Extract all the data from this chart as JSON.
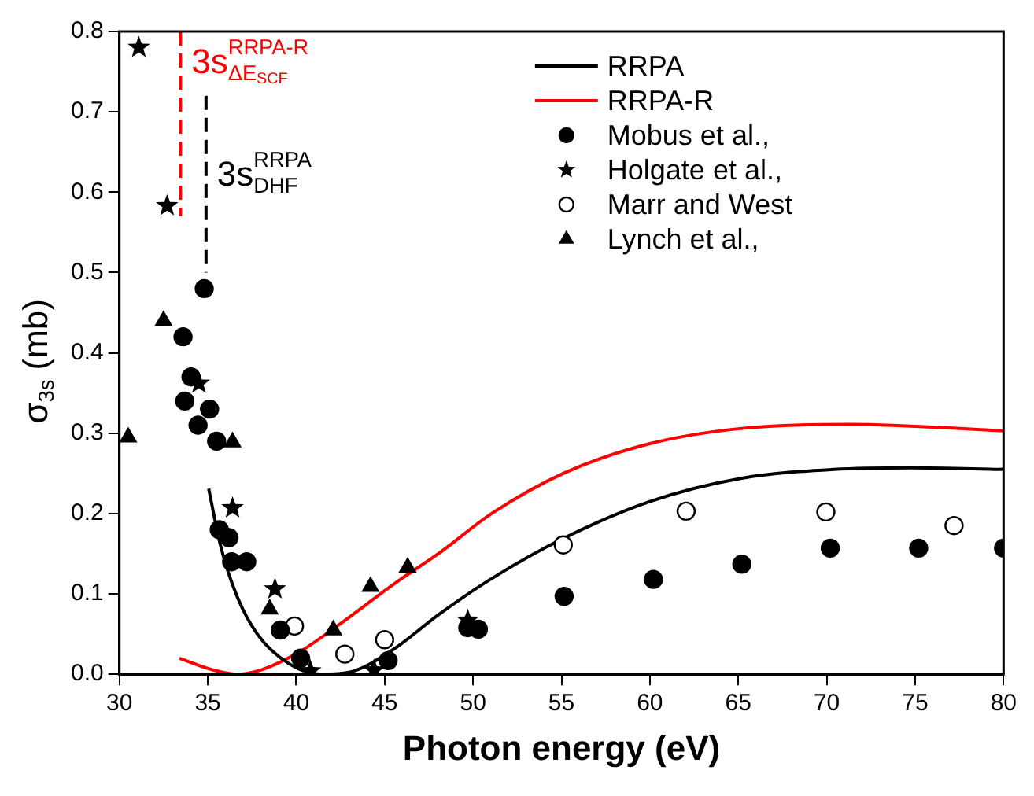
{
  "chart_data": {
    "type": "scatter",
    "xlabel": "Photon energy (eV)",
    "ylabel": "σ$_{3s}$ (mb)",
    "xlim": [
      30,
      80
    ],
    "xticks": [
      30,
      35,
      40,
      45,
      50,
      55,
      60,
      65,
      70,
      75,
      80
    ],
    "ylim": [
      0,
      0.8
    ],
    "yticks": [
      {
        "value": 0,
        "label": "0.0"
      },
      0.1,
      0.2,
      0.3,
      0.4,
      0.5,
      0.6,
      0.7,
      0.8
    ],
    "grid": false,
    "legend": "top right",
    "series": [
      {
        "name": "RRPA",
        "type": "line",
        "color": "#000000",
        "marker": "none",
        "x": [
          35.05,
          35.7,
          36.6,
          37.8,
          39.6,
          41.4,
          43.1,
          45.5,
          48.1,
          51.05,
          55.1,
          60,
          65.2,
          70.4,
          74.8,
          80
        ],
        "values": [
          0.231,
          0.162,
          0.1,
          0.05,
          0.013,
          0.0,
          0.003,
          0.031,
          0.075,
          0.119,
          0.169,
          0.215,
          0.244,
          0.255,
          0.257,
          0.255
        ]
      },
      {
        "name": "RRPA-R",
        "type": "line",
        "color": "#ff0000",
        "marker": "none",
        "x": [
          33.4,
          35.2,
          36.6,
          38.1,
          40.2,
          42.5,
          45.5,
          48.1,
          51.05,
          55.1,
          60,
          65.2,
          71.3,
          80
        ],
        "values": [
          0.02,
          0.006,
          0.0,
          0.006,
          0.028,
          0.063,
          0.112,
          0.151,
          0.2,
          0.25,
          0.287,
          0.306,
          0.311,
          0.303
        ]
      },
      {
        "name": "Mobus et al.,",
        "type": "scatter",
        "color": "#000000",
        "marker": "circle",
        "x": [
          34.8,
          33.6,
          34.05,
          33.7,
          35.1,
          34.45,
          35.5,
          35.65,
          36.2,
          36.35,
          37.2,
          39.1,
          40.25,
          45.2,
          49.7,
          50.3,
          55.15,
          60.2,
          65.2,
          70.2,
          75.2,
          80
        ],
        "values": [
          0.48,
          0.42,
          0.37,
          0.34,
          0.33,
          0.31,
          0.29,
          0.18,
          0.17,
          0.14,
          0.14,
          0.055,
          0.02,
          0.017,
          0.058,
          0.056,
          0.097,
          0.118,
          0.137,
          0.157,
          0.157,
          0.157
        ]
      },
      {
        "name": "Holgate et al.,",
        "type": "scatter",
        "color": "#000000",
        "marker": "star",
        "x": [
          31.1,
          32.7,
          34.5,
          36.4,
          38.8,
          40.8,
          44.4,
          49.7
        ],
        "values": [
          0.78,
          0.583,
          0.362,
          0.207,
          0.106,
          0.004,
          0.005,
          0.067
        ]
      },
      {
        "name": "Marr and West",
        "type": "scatter",
        "color": "#000000",
        "marker": "circle_open",
        "x": [
          39.9,
          42.75,
          45,
          55.1,
          62.05,
          69.95,
          77.2
        ],
        "values": [
          0.06,
          0.025,
          0.043,
          0.161,
          0.203,
          0.202,
          0.185
        ]
      },
      {
        "name": "Lynch et al.,",
        "type": "scatter",
        "color": "#000000",
        "marker": "triangle",
        "x": [
          30.5,
          32.5,
          36.4,
          38.5,
          42.1,
          44.2,
          46.3
        ],
        "values": [
          0.295,
          0.44,
          0.289,
          0.081,
          0.055,
          0.109,
          0.133
        ]
      }
    ],
    "ref_lines": [
      {
        "axis": "x",
        "value": 33.45,
        "label": "3s$^{RRPA-R}$$_{ΔE}$$_{SCF}$",
        "color": "#ff0000",
        "line_style": "dashed"
      },
      {
        "axis": "x",
        "value": 34.9,
        "label": "3s$^{RRPA}$$_{DHF}$",
        "color": "#000000",
        "line_style": "dashed"
      }
    ]
  }
}
